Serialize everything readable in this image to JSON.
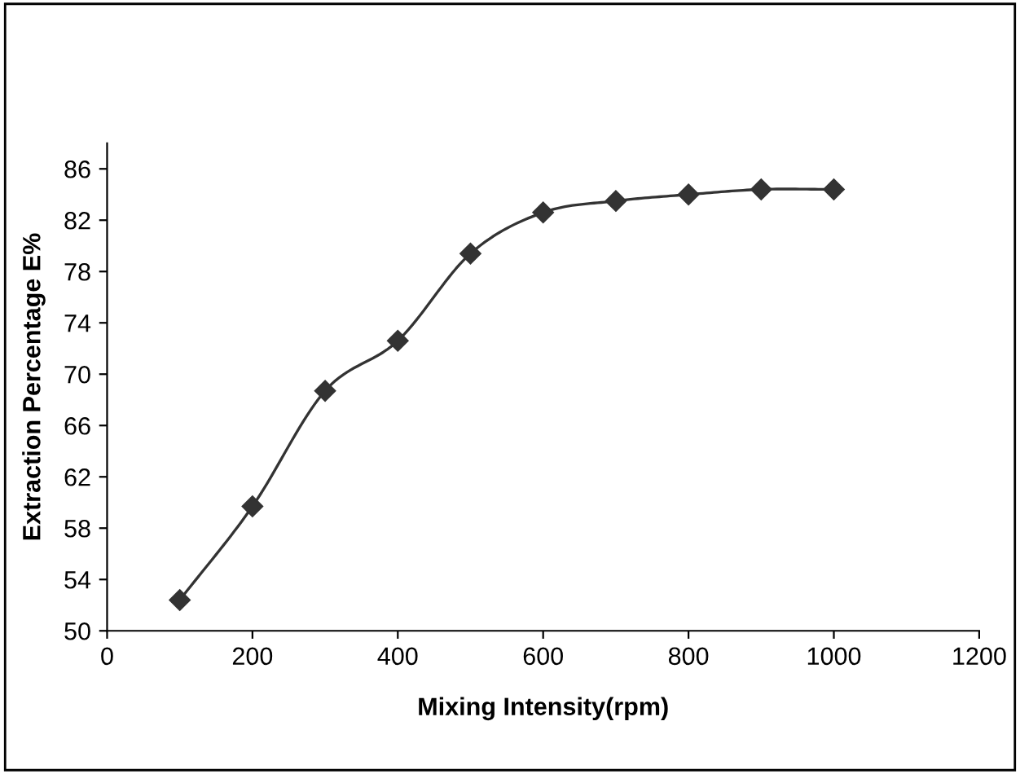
{
  "chart_data": {
    "type": "line",
    "xlabel": "Mixing Intensity(rpm)",
    "ylabel": "Extraction Percentage E%",
    "x": [
      100,
      200,
      300,
      400,
      500,
      600,
      700,
      800,
      900,
      1000
    ],
    "series": [
      {
        "color": "#333333",
        "values": [
          52.4,
          59.7,
          68.7,
          72.6,
          79.4,
          82.6,
          83.5,
          84.0,
          84.4,
          84.4
        ]
      }
    ],
    "xlim": [
      0,
      1200
    ],
    "xticks": [
      0,
      200,
      400,
      600,
      800,
      1000,
      1200
    ],
    "ylim": [
      50,
      88
    ],
    "yticks": [
      50,
      54,
      58,
      62,
      66,
      70,
      74,
      78,
      82,
      86
    ],
    "marker": "diamond",
    "line_style": "solid",
    "grid": false
  }
}
